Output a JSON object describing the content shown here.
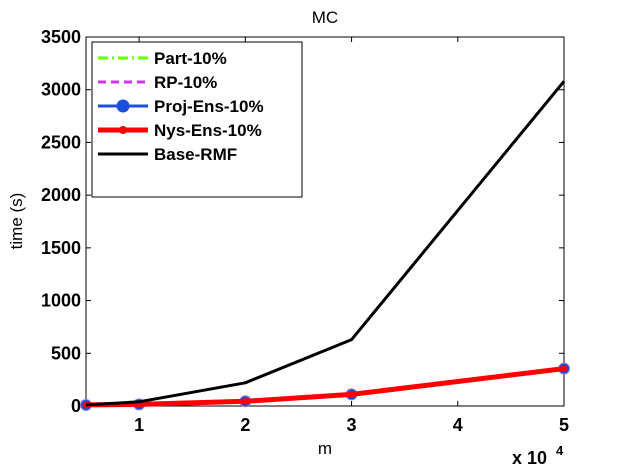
{
  "chart_data": {
    "type": "line",
    "title": "MC",
    "xlabel": "m",
    "ylabel": "time (s)",
    "x_multiplier_label": "x 10",
    "x_multiplier_exponent": "4",
    "xlim": [
      0.5,
      5
    ],
    "ylim": [
      0,
      3500
    ],
    "xticks": [
      1,
      2,
      3,
      4,
      5
    ],
    "yticks": [
      0,
      500,
      1000,
      1500,
      2000,
      2500,
      3000,
      3500
    ],
    "x": [
      0.5,
      1,
      2,
      3,
      5
    ],
    "series": [
      {
        "name": "Part-10%",
        "values": [
          10,
          15,
          45,
          110,
          355
        ],
        "color": "#66ff00",
        "style": "dashdot",
        "marker": "none"
      },
      {
        "name": "RP-10%",
        "values": [
          10,
          15,
          45,
          110,
          355
        ],
        "color": "#cc33ff",
        "style": "dashed",
        "marker": "none"
      },
      {
        "name": "Proj-Ens-10%",
        "values": [
          10,
          15,
          45,
          110,
          355
        ],
        "color": "#1a4fe0",
        "style": "solid",
        "marker": "circle"
      },
      {
        "name": "Nys-Ens-10%",
        "values": [
          10,
          15,
          45,
          110,
          355
        ],
        "color": "#ff0000",
        "style": "solid",
        "marker": "dot"
      },
      {
        "name": "Base-RMF",
        "values": [
          10,
          40,
          220,
          630,
          3080
        ],
        "color": "#000000",
        "style": "solid",
        "marker": "none"
      }
    ],
    "legend_position": "top-left"
  }
}
